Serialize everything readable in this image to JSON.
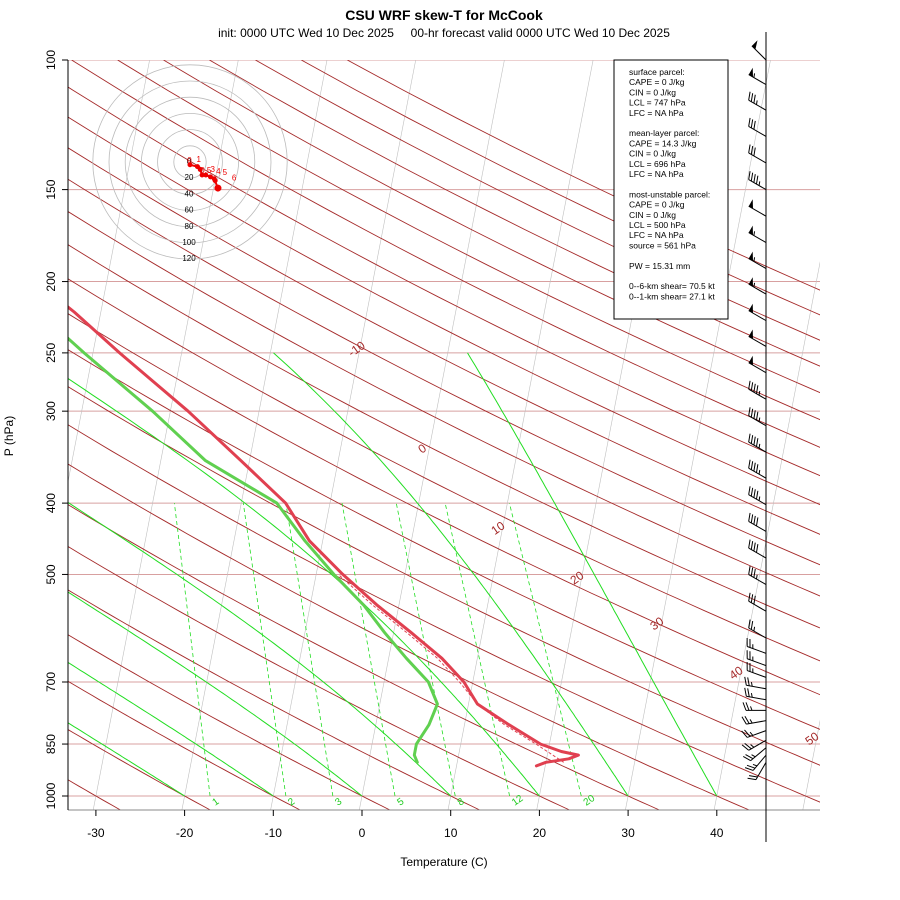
{
  "title": "CSU WRF skew-T for McCook",
  "subtitle": "init: 0000 UTC Wed 10 Dec 2025     00-hr forecast valid 0000 UTC Wed 10 Dec 2025",
  "xlabel": "Temperature (C)",
  "ylabel": "P (hPa)",
  "chart_data": {
    "type": "line",
    "title": "CSU WRF skew-T for McCook",
    "xlabel": "Temperature (C)",
    "ylabel": "P (hPa)",
    "xlim": [
      -33,
      52
    ],
    "ylim": [
      1050,
      100
    ],
    "log_y": true,
    "x_ticks": [
      -30,
      -20,
      -10,
      0,
      10,
      20,
      30,
      40
    ],
    "y_ticks": [
      100,
      150,
      200,
      250,
      300,
      400,
      500,
      700,
      850,
      1000
    ],
    "isotherm_labels": [
      -10,
      0,
      10,
      20,
      30,
      40,
      50
    ],
    "mixing_ratio_labels": [
      1,
      2,
      3,
      5,
      8,
      12,
      20
    ],
    "series": [
      {
        "name": "Temperature",
        "color": "#e04050",
        "points": [
          [
            910,
            19
          ],
          [
            900,
            20
          ],
          [
            890,
            22.5
          ],
          [
            880,
            23.5
          ],
          [
            870,
            21.5
          ],
          [
            850,
            19
          ],
          [
            800,
            15
          ],
          [
            750,
            11
          ],
          [
            700,
            9
          ],
          [
            650,
            6
          ],
          [
            600,
            2
          ],
          [
            550,
            -2.5
          ],
          [
            500,
            -7
          ],
          [
            450,
            -11.5
          ],
          [
            400,
            -15
          ],
          [
            350,
            -21
          ],
          [
            300,
            -28
          ],
          [
            250,
            -37
          ],
          [
            220,
            -43
          ],
          [
            200,
            -48
          ],
          [
            180,
            -53
          ],
          [
            160,
            -56
          ],
          [
            140,
            -57.5
          ],
          [
            120,
            -60
          ],
          [
            108,
            -62
          ]
        ]
      },
      {
        "name": "Dewpoint",
        "color": "#60d050",
        "points": [
          [
            900,
            5.5
          ],
          [
            880,
            5
          ],
          [
            850,
            5
          ],
          [
            800,
            6
          ],
          [
            750,
            6.5
          ],
          [
            700,
            5
          ],
          [
            650,
            2
          ],
          [
            600,
            -1
          ],
          [
            550,
            -4
          ],
          [
            500,
            -8
          ],
          [
            450,
            -12
          ],
          [
            400,
            -16
          ],
          [
            350,
            -25
          ],
          [
            300,
            -32
          ],
          [
            250,
            -41
          ],
          [
            220,
            -47
          ],
          [
            200,
            -52
          ],
          [
            180,
            -56
          ],
          [
            160,
            -60
          ],
          [
            140,
            -64
          ],
          [
            120,
            -67
          ],
          [
            108,
            -69
          ]
        ]
      }
    ],
    "parcel_trace": {
      "color": "#e04050",
      "points": [
        [
          900,
          22
        ],
        [
          850,
          18.5
        ],
        [
          800,
          14.5
        ],
        [
          750,
          11
        ],
        [
          700,
          8.5
        ],
        [
          650,
          5.5
        ],
        [
          600,
          1.5
        ],
        [
          550,
          -3
        ],
        [
          500,
          -7.5
        ]
      ]
    },
    "hodograph": {
      "ring_labels": [
        "0",
        "20",
        "40",
        "60",
        "80",
        "100",
        "120"
      ],
      "height_labels": [
        "0",
        "1",
        "0.5",
        "3",
        "4",
        "5",
        "6"
      ],
      "points": [
        [
          0,
          3
        ],
        [
          8,
          5
        ],
        [
          11,
          8
        ],
        [
          13,
          14
        ],
        [
          17,
          14
        ],
        [
          22,
          16
        ],
        [
          27,
          20
        ],
        [
          26,
          18
        ],
        [
          30,
          28
        ]
      ]
    },
    "wind_barbs": [
      {
        "p": 100,
        "dir": 315,
        "spd": 50
      },
      {
        "p": 108,
        "dir": 300,
        "spd": 55
      },
      {
        "p": 117,
        "dir": 300,
        "spd": 35
      },
      {
        "p": 127,
        "dir": 300,
        "spd": 30
      },
      {
        "p": 138,
        "dir": 300,
        "spd": 30
      },
      {
        "p": 150,
        "dir": 300,
        "spd": 45
      },
      {
        "p": 163,
        "dir": 300,
        "spd": 50
      },
      {
        "p": 177,
        "dir": 300,
        "spd": 55
      },
      {
        "p": 192,
        "dir": 300,
        "spd": 55
      },
      {
        "p": 208,
        "dir": 300,
        "spd": 55
      },
      {
        "p": 226,
        "dir": 300,
        "spd": 50
      },
      {
        "p": 245,
        "dir": 300,
        "spd": 50
      },
      {
        "p": 266,
        "dir": 300,
        "spd": 50
      },
      {
        "p": 289,
        "dir": 300,
        "spd": 45
      },
      {
        "p": 314,
        "dir": 300,
        "spd": 45
      },
      {
        "p": 341,
        "dir": 300,
        "spd": 45
      },
      {
        "p": 370,
        "dir": 300,
        "spd": 45
      },
      {
        "p": 402,
        "dir": 300,
        "spd": 45
      },
      {
        "p": 437,
        "dir": 300,
        "spd": 40
      },
      {
        "p": 475,
        "dir": 300,
        "spd": 40
      },
      {
        "p": 516,
        "dir": 300,
        "spd": 35
      },
      {
        "p": 561,
        "dir": 300,
        "spd": 30
      },
      {
        "p": 610,
        "dir": 300,
        "spd": 25
      },
      {
        "p": 640,
        "dir": 290,
        "spd": 25
      },
      {
        "p": 665,
        "dir": 290,
        "spd": 25
      },
      {
        "p": 690,
        "dir": 290,
        "spd": 25
      },
      {
        "p": 715,
        "dir": 280,
        "spd": 25
      },
      {
        "p": 740,
        "dir": 280,
        "spd": 25
      },
      {
        "p": 765,
        "dir": 270,
        "spd": 25
      },
      {
        "p": 790,
        "dir": 260,
        "spd": 25
      },
      {
        "p": 815,
        "dir": 250,
        "spd": 25
      },
      {
        "p": 840,
        "dir": 240,
        "spd": 25
      },
      {
        "p": 860,
        "dir": 230,
        "spd": 25
      },
      {
        "p": 880,
        "dir": 220,
        "spd": 25
      },
      {
        "p": 900,
        "dir": 210,
        "spd": 20
      }
    ]
  },
  "stats_box": {
    "lines": [
      "surface parcel:",
      "CAPE = 0 J/kg",
      "CIN = 0 J/kg",
      "LCL = 747 hPa",
      "LFC = NA hPa",
      "",
      "mean-layer parcel:",
      "CAPE = 14.3 J/kg",
      "CIN = 0 J/kg",
      "LCL = 696 hPa",
      "LFC = NA hPa",
      "",
      "most-unstable parcel:",
      "CAPE = 0 J/kg",
      "CIN = 0 J/kg",
      "LCL = 500 hPa",
      "LFC = NA hPa",
      "source = 561 hPa",
      "",
      "PW =  15.31 mm",
      "",
      "0--6-km shear= 70.5 kt",
      "0--1-km shear= 27.1 kt"
    ]
  },
  "colors": {
    "isotherm": "#a52a2a",
    "isobar": "#d8a0a0",
    "dry_adiabat": "#a52a2a",
    "moist_adiabat": "#22dd22",
    "mixing_ratio": "#22dd22",
    "temperature": "#e04050",
    "dewpoint": "#60d050"
  }
}
